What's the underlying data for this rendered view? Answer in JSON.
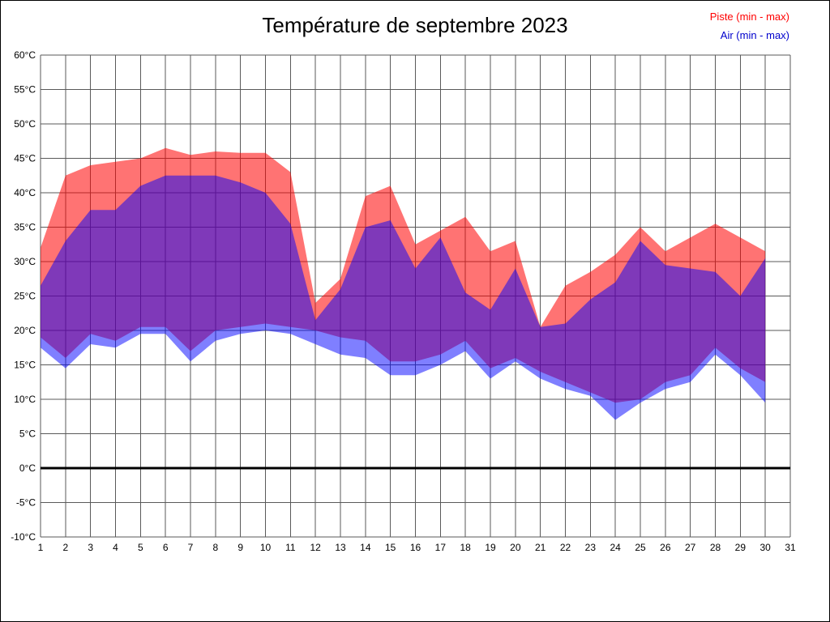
{
  "chart_data": {
    "type": "area",
    "title": "Température de septembre 2023",
    "xlabel": "",
    "ylabel": "",
    "xlim": [
      1,
      31
    ],
    "ylim": [
      -10,
      60
    ],
    "grid": true,
    "grid_color": "#5a5a5a",
    "zero_line_value": 0,
    "legend_position": "top-right",
    "x": [
      1,
      2,
      3,
      4,
      5,
      6,
      7,
      8,
      9,
      10,
      11,
      12,
      13,
      14,
      15,
      16,
      17,
      18,
      19,
      20,
      21,
      22,
      23,
      24,
      25,
      26,
      27,
      28,
      29,
      30
    ],
    "x_ticks": [
      1,
      2,
      3,
      4,
      5,
      6,
      7,
      8,
      9,
      10,
      11,
      12,
      13,
      14,
      15,
      16,
      17,
      18,
      19,
      20,
      21,
      22,
      23,
      24,
      25,
      26,
      27,
      28,
      29,
      30,
      31
    ],
    "y_ticks": [
      60,
      55,
      50,
      45,
      40,
      35,
      30,
      25,
      20,
      15,
      10,
      5,
      0,
      -5,
      -10
    ],
    "y_tick_labels": [
      "60°C",
      "55°C",
      "50°C",
      "45°C",
      "40°C",
      "35°C",
      "30°C",
      "25°C",
      "20°C",
      "15°C",
      "10°C",
      "5°C",
      "0°C",
      "-5°C",
      "-10°C"
    ],
    "series": [
      {
        "name": "Piste (min - max)",
        "role": "piste-band",
        "fill": "rgba(255,0,0,0.55)",
        "legend_color": "#ff0000",
        "max": [
          32,
          42.5,
          44,
          44.5,
          45,
          46.5,
          45.5,
          46,
          45.8,
          45.8,
          43,
          24,
          27.5,
          39.5,
          41,
          32.5,
          34.5,
          36.5,
          31.5,
          33,
          20.5,
          26.5,
          28.5,
          31,
          35,
          31.5,
          33.5,
          35.5,
          33.5,
          31.5
        ],
        "min": [
          19,
          16,
          19.5,
          18.5,
          20.5,
          20.5,
          17,
          20,
          20.5,
          21,
          20.5,
          20,
          19,
          18.5,
          15.5,
          15.5,
          16.5,
          18.5,
          14.5,
          16,
          14,
          12.5,
          11,
          9.5,
          10,
          12.5,
          13.5,
          17.5,
          14.5,
          12.5
        ]
      },
      {
        "name": "Air (min - max)",
        "role": "air-band",
        "fill": "rgba(0,0,255,0.5)",
        "legend_color": "#0000cc",
        "max": [
          26.5,
          33,
          37.5,
          37.5,
          41,
          42.5,
          42.5,
          42.5,
          41.5,
          40,
          35.5,
          21.5,
          26,
          35,
          36,
          29,
          33.5,
          25.5,
          23,
          29,
          20.5,
          21,
          24.5,
          27,
          33,
          29.5,
          29,
          28.5,
          25,
          30.5
        ],
        "min": [
          17.5,
          14.5,
          18,
          17.5,
          19.5,
          19.5,
          15.5,
          18.5,
          19.5,
          20,
          19.5,
          18,
          16.5,
          16,
          13.5,
          13.5,
          15,
          17,
          13,
          15.5,
          13,
          11.5,
          10.5,
          7,
          9.5,
          11.5,
          12.5,
          16.5,
          13.5,
          9.5
        ]
      }
    ]
  },
  "legend": {
    "piste_label": "Piste (min - max)",
    "air_label": "Air (min - max)"
  }
}
